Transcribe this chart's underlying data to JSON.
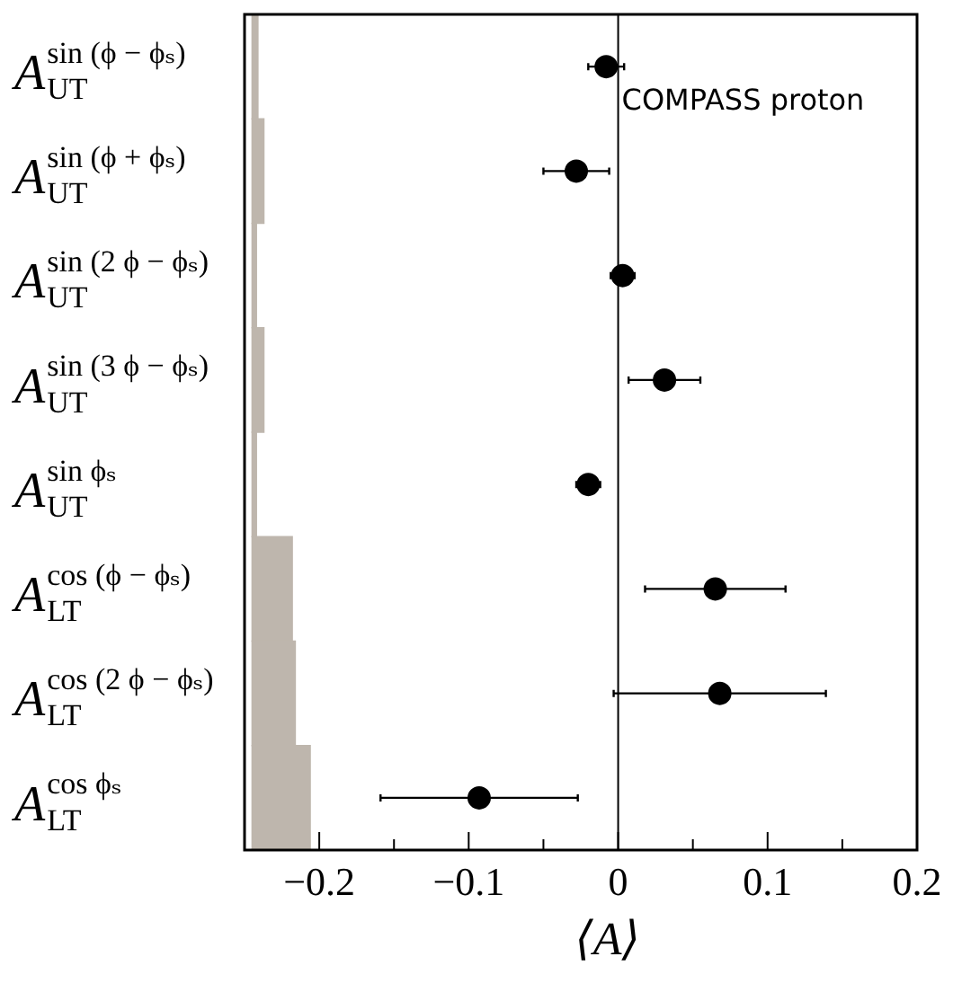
{
  "chart_data": {
    "type": "scatter",
    "orientation": "horizontal",
    "categories": [
      "A$^{sin (ϕ − ϕₛ)}$$_{UT}$",
      "A$^{sin (ϕ + ϕₛ)}$$_{UT}$",
      "A$^{sin (2 ϕ − ϕₛ)}$$_{UT}$",
      "A$^{sin (3 ϕ − ϕₛ)}$$_{UT}$",
      "A$^{sin ϕₛ}$$_{UT}$",
      "A$^{cos (ϕ − ϕₛ)}$$_{LT}$",
      "A$^{cos (2 ϕ − ϕₛ)}$$_{LT}$",
      "A$^{cos ϕₛ}$$_{LT}$"
    ],
    "xlabel": "⟨A⟩",
    "xlim": [
      -0.25,
      0.2
    ],
    "xticks": [
      {
        "value": -0.2,
        "label": "−0.2"
      },
      {
        "value": -0.15,
        "label": null
      },
      {
        "value": -0.1,
        "label": "−0.1"
      },
      {
        "value": -0.05,
        "label": null
      },
      0,
      {
        "value": 0.05,
        "label": null
      },
      0.1,
      {
        "value": 0.15,
        "label": null
      },
      0.2
    ],
    "ref_lines": [
      {
        "axis": "x",
        "value": 0,
        "color": "#000000"
      }
    ],
    "annotations": [
      "COMPASS proton"
    ],
    "series": [
      {
        "type": "bar",
        "color": "#beb6ad",
        "base": [
          -0.245,
          -0.245,
          -0.245,
          -0.245,
          -0.245,
          -0.245,
          -0.245,
          -0.245
        ],
        "values": [
          0.004,
          0.008,
          0.003,
          0.008,
          0.003,
          0.027,
          0.029,
          0.039
        ]
      },
      {
        "color": "#000000",
        "values": [
          -0.008,
          -0.028,
          0.003,
          0.031,
          -0.02,
          0.065,
          0.068,
          -0.093
        ],
        "errors": [
          0.012,
          0.022,
          0.008,
          0.024,
          0.008,
          0.047,
          0.071,
          0.066
        ]
      }
    ],
    "marker": "circle",
    "grid": false,
    "legend": false
  }
}
